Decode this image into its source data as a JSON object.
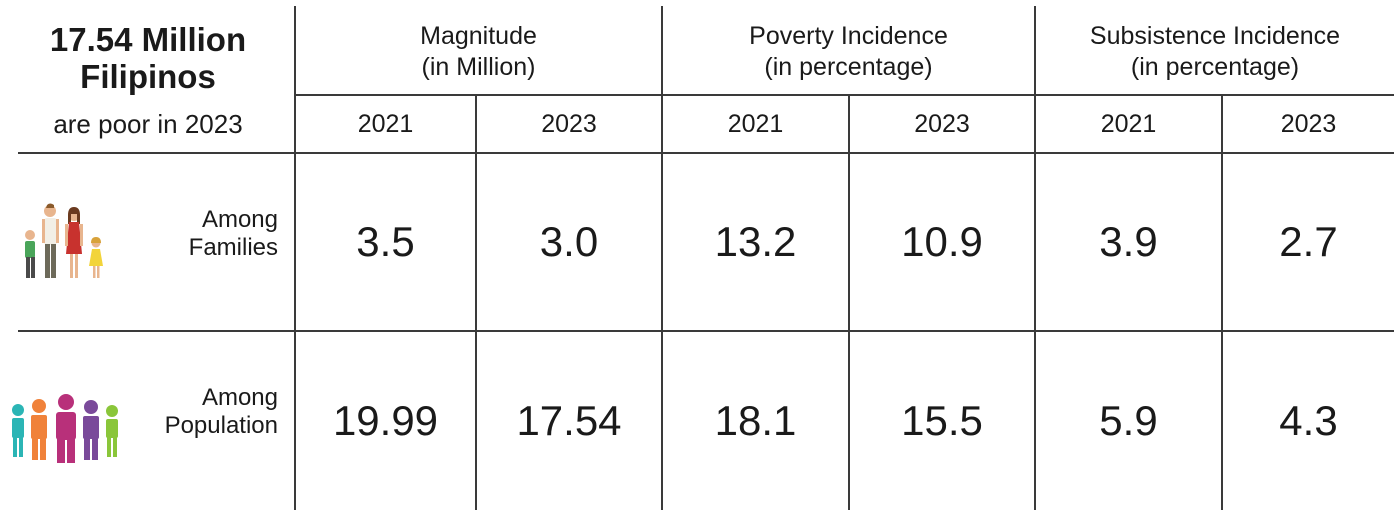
{
  "title": {
    "line1": "17.54 Million",
    "line2": "Filipinos",
    "line3": "are poor in 2023"
  },
  "groups": [
    {
      "line1": "Magnitude",
      "line2": "(in Million)"
    },
    {
      "line1": "Poverty Incidence",
      "line2": "(in percentage)"
    },
    {
      "line1": "Subsistence Incidence",
      "line2": "(in percentage)"
    }
  ],
  "years": [
    "2021",
    "2023",
    "2021",
    "2023",
    "2021",
    "2023"
  ],
  "rows": [
    {
      "label1": "Among",
      "label2": "Families",
      "icon": "family-icon",
      "values": [
        "3.5",
        "3.0",
        "13.2",
        "10.9",
        "3.9",
        "2.7"
      ]
    },
    {
      "label1": "Among",
      "label2": "Population",
      "icon": "population-icon",
      "values": [
        "19.99",
        "17.54",
        "18.1",
        "15.5",
        "5.9",
        "4.3"
      ]
    }
  ],
  "chart_data": {
    "type": "table",
    "columns": [
      "Magnitude (in Million) 2021",
      "Magnitude (in Million) 2023",
      "Poverty Incidence (in percentage) 2021",
      "Poverty Incidence (in percentage) 2023",
      "Subsistence Incidence (in percentage) 2021",
      "Subsistence Incidence (in percentage) 2023"
    ],
    "rows": [
      {
        "name": "Among Families",
        "values": [
          3.5,
          3.0,
          13.2,
          10.9,
          3.9,
          2.7
        ]
      },
      {
        "name": "Among Population",
        "values": [
          19.99,
          17.54,
          18.1,
          15.5,
          5.9,
          4.3
        ]
      }
    ]
  }
}
